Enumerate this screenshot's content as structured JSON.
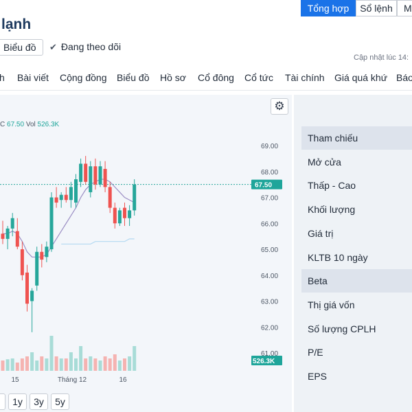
{
  "header": {
    "title": "lạnh",
    "chart_button": "Biểu đồ",
    "follow_label": "Đang theo dõi",
    "updated_label": "Cập nhật lúc 14:"
  },
  "nav": [
    "h",
    "Bài viết",
    "Cộng đồng",
    "Biểu đồ",
    "Hồ sơ",
    "Cổ đông",
    "Cổ tức",
    "Tài chính",
    "Giá quá khứ",
    "Báo"
  ],
  "chart": {
    "legend_close_label": "C",
    "legend_close": "67.50",
    "legend_vol_label": "Vol",
    "legend_vol": "526.3K",
    "price_badge": "67.50",
    "volume_badge": "526.3K",
    "ranges": [
      "1y",
      "3y",
      "5y"
    ],
    "colors": {
      "up": "#26a69a",
      "down": "#ef5350",
      "ma": "#9b8ec4",
      "ma_long": "#b3d9f2",
      "badge": "#1ea59a"
    }
  },
  "chart_data": {
    "type": "candlestick",
    "y_ticks": [
      "69.00",
      "68.00",
      "67.00",
      "66.00",
      "65.00",
      "64.00",
      "63.00",
      "62.00",
      "61.00"
    ],
    "x_ticks": [
      "15",
      "Tháng 12",
      "16"
    ],
    "last_price": 67.5,
    "last_volume": "526.3K",
    "ylim": [
      60.6,
      69.2
    ],
    "candles": [
      {
        "o": 65.6,
        "h": 66.1,
        "l": 65.2,
        "c": 65.4
      },
      {
        "o": 65.4,
        "h": 65.9,
        "l": 65.0,
        "c": 65.8
      },
      {
        "o": 65.8,
        "h": 66.4,
        "l": 65.5,
        "c": 66.2
      },
      {
        "o": 65.7,
        "h": 66.2,
        "l": 65.0,
        "c": 65.1
      },
      {
        "o": 65.0,
        "h": 65.3,
        "l": 63.8,
        "c": 64.0
      },
      {
        "o": 64.1,
        "h": 64.4,
        "l": 62.6,
        "c": 62.9
      },
      {
        "o": 63.0,
        "h": 63.5,
        "l": 61.8,
        "c": 63.4
      },
      {
        "o": 63.6,
        "h": 65.1,
        "l": 63.4,
        "c": 64.9
      },
      {
        "o": 64.9,
        "h": 65.2,
        "l": 64.3,
        "c": 64.6
      },
      {
        "o": 64.7,
        "h": 65.3,
        "l": 64.5,
        "c": 65.1
      },
      {
        "o": 65.0,
        "h": 67.2,
        "l": 64.9,
        "c": 67.0
      },
      {
        "o": 67.0,
        "h": 67.4,
        "l": 66.6,
        "c": 66.8
      },
      {
        "o": 66.9,
        "h": 67.2,
        "l": 66.6,
        "c": 67.1
      },
      {
        "o": 67.1,
        "h": 67.4,
        "l": 66.8,
        "c": 66.9
      },
      {
        "o": 66.9,
        "h": 67.6,
        "l": 66.6,
        "c": 67.4
      },
      {
        "o": 66.8,
        "h": 67.9,
        "l": 66.6,
        "c": 67.7
      },
      {
        "o": 67.6,
        "h": 68.5,
        "l": 67.4,
        "c": 68.3
      },
      {
        "o": 68.3,
        "h": 68.6,
        "l": 67.5,
        "c": 67.6
      },
      {
        "o": 67.2,
        "h": 68.4,
        "l": 67.0,
        "c": 68.2
      },
      {
        "o": 68.2,
        "h": 68.5,
        "l": 67.3,
        "c": 67.5
      },
      {
        "o": 67.5,
        "h": 68.4,
        "l": 67.4,
        "c": 68.2
      },
      {
        "o": 68.1,
        "h": 68.4,
        "l": 67.2,
        "c": 67.4
      },
      {
        "o": 67.4,
        "h": 67.6,
        "l": 66.4,
        "c": 66.6
      },
      {
        "o": 66.6,
        "h": 66.8,
        "l": 65.8,
        "c": 66.0
      },
      {
        "o": 66.0,
        "h": 66.6,
        "l": 65.9,
        "c": 66.5
      },
      {
        "o": 66.6,
        "h": 66.8,
        "l": 65.9,
        "c": 66.2
      },
      {
        "o": 66.2,
        "h": 66.7,
        "l": 65.9,
        "c": 66.5
      },
      {
        "o": 66.5,
        "h": 67.7,
        "l": 66.3,
        "c": 67.5
      }
    ],
    "ma_short": [
      65.6,
      65.6,
      65.7,
      65.6,
      65.3,
      64.9,
      64.7,
      64.7,
      64.7,
      64.8,
      65.1,
      65.4,
      65.7,
      66.0,
      66.3,
      66.6,
      67.0,
      67.3,
      67.5,
      67.6,
      67.7,
      67.7,
      67.6,
      67.4,
      67.2,
      67.0,
      66.9,
      66.8
    ],
    "ma_long": [
      null,
      null,
      null,
      null,
      null,
      null,
      null,
      null,
      null,
      null,
      null,
      null,
      65.2,
      65.2,
      65.2,
      65.2,
      65.2,
      65.2,
      65.2,
      65.3,
      65.3,
      65.3,
      65.3,
      65.3,
      65.3,
      65.3,
      65.4,
      65.4
    ],
    "volume": [
      0.25,
      0.28,
      0.3,
      0.2,
      0.3,
      0.35,
      0.45,
      0.25,
      0.35,
      0.3,
      0.85,
      0.35,
      0.3,
      0.3,
      0.45,
      0.3,
      0.6,
      0.3,
      0.35,
      0.3,
      0.25,
      0.35,
      0.3,
      0.4,
      0.25,
      0.3,
      0.35,
      0.6
    ]
  },
  "panel": {
    "tabs": [
      "Tổng hợp",
      "Sổ lệnh",
      "Mu"
    ],
    "rows": [
      "Tham chiếu",
      "Mở cửa",
      "Thấp - Cao",
      "Khối lượng",
      "Giá trị",
      "KLTB 10 ngày",
      "Beta",
      "Thị giá vốn",
      "Số lượng CPLH",
      "P/E",
      "EPS"
    ]
  }
}
